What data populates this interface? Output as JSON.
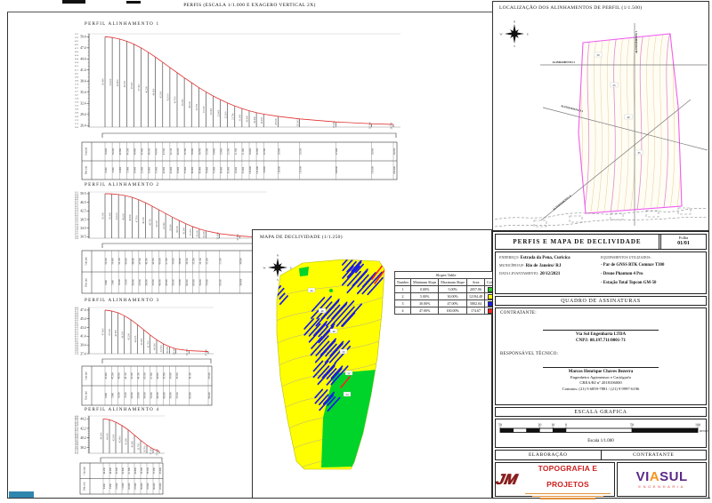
{
  "sheet": {
    "left_title": "PERFIS (ESCALA 1/1.000 E EXAGERO VERTICAL 2X)",
    "location_title": "LOCALIZAÇÃO DOS ALINHAMENTOS DE PERFIL (1/1.500)",
    "declivity_title": "MAPA DE DECLIVIDADE (1/1.250)"
  },
  "compass": {
    "n": "N",
    "e": "E",
    "s": "S",
    "w": "W"
  },
  "alignments": [
    "ALINHAMENTO 1",
    "ALINHAMENTO 2",
    "ALINHAMENTO 3",
    "ALINHAMENTO 4"
  ],
  "profile_table": {
    "row1": "Cota (m)",
    "row2": "Dist. (m)"
  },
  "chart_data": [
    {
      "type": "line",
      "name": "PERFIL ALINHAMENTO 1",
      "x": [
        0,
        5,
        10,
        15,
        20,
        25,
        30,
        35,
        40,
        45,
        50,
        55,
        60,
        65,
        70,
        75,
        80,
        85,
        90,
        95,
        100,
        105,
        110,
        120,
        135,
        160,
        185,
        200
      ],
      "elevations": [
        50.4,
        50.2,
        49.8,
        49.2,
        48.4,
        47.4,
        46.2,
        44.9,
        43.5,
        42.1,
        40.7,
        39.3,
        38.0,
        36.7,
        35.5,
        34.4,
        33.4,
        32.5,
        31.7,
        31.0,
        30.4,
        29.9,
        29.5,
        28.9,
        28.2,
        27.4,
        26.9,
        26.7
      ],
      "yticks": [
        50.4,
        47.4,
        44.4,
        41.4,
        38.4,
        35.4,
        32.4,
        29.4,
        26.4
      ],
      "ylim": [
        26.0,
        51.2
      ],
      "xlabel": "",
      "ylabel": ""
    },
    {
      "type": "line",
      "name": "PERFIL ALINHAMENTO 2",
      "x": [
        0,
        5,
        10,
        15,
        20,
        25,
        30,
        35,
        40,
        45,
        50,
        55,
        60,
        65,
        70,
        75,
        85,
        100,
        115
      ],
      "elevations": [
        50.5,
        50.4,
        50.1,
        49.6,
        48.8,
        47.7,
        46.3,
        44.7,
        43.0,
        41.3,
        39.6,
        38.0,
        36.5,
        35.2,
        34.1,
        33.2,
        31.9,
        30.8,
        30.2
      ],
      "yticks": [
        50.5,
        46.5,
        42.5,
        38.5,
        34.5,
        30.5
      ],
      "ylim": [
        29.8,
        51.3
      ],
      "xlabel": "",
      "ylabel": ""
    },
    {
      "type": "line",
      "name": "PERFIL ALINHAMENTO 3",
      "x": [
        0,
        5,
        10,
        15,
        20,
        25,
        30,
        35,
        40,
        45,
        50,
        55,
        65,
        80
      ],
      "elevations": [
        47.4,
        47.2,
        46.8,
        46.1,
        45.2,
        44.1,
        42.9,
        41.7,
        40.6,
        39.7,
        39.0,
        38.5,
        38.1,
        37.9
      ],
      "yticks": [
        47.4,
        45.4,
        43.4,
        41.4,
        39.4,
        37.4
      ],
      "ylim": [
        37.4,
        48.0
      ],
      "xlabel": "",
      "ylabel": ""
    },
    {
      "type": "line",
      "name": "PERFIL ALINHAMENTO 4",
      "x": [
        0,
        5,
        10,
        15,
        20,
        25,
        30,
        35,
        40,
        45
      ],
      "elevations": [
        44.2,
        44.0,
        43.5,
        42.8,
        41.9,
        40.8,
        39.7,
        38.7,
        37.9,
        37.4
      ],
      "yticks": [
        44.2,
        42.2,
        40.2,
        38.2
      ],
      "ylim": [
        37.0,
        44.8
      ],
      "xlabel": "",
      "ylabel": ""
    }
  ],
  "slopes_table": {
    "title": "Slopes Table",
    "headers": [
      "Number",
      "Minimum Slope",
      "Maximum Slope",
      "Area",
      "Color"
    ],
    "rows": [
      {
        "number": "1",
        "min": "0.00%",
        "max": "5.00%",
        "area": "2057.06",
        "color": "#22cc22"
      },
      {
        "number": "2",
        "min": "5.00%",
        "max": "30.00%",
        "area": "12194.48",
        "color": "#ffff00"
      },
      {
        "number": "3",
        "min": "30.00%",
        "max": "47.00%",
        "area": "5802.04",
        "color": "#1818e8"
      },
      {
        "number": "4",
        "min": "47.00%",
        "max": "100.00%",
        "area": "174.67",
        "color": "#ff2020"
      }
    ]
  },
  "declivity": {
    "contour_labels": [
      "44",
      "46",
      "48",
      "50",
      "52",
      "54"
    ]
  },
  "location": {
    "contour_labels": [
      "50",
      "45",
      "40",
      "35"
    ]
  },
  "title_block": {
    "header_title": "PERFIS E MAPA DE DECLIVIDADE",
    "folha_label": "Folha",
    "folha_value": "01/01",
    "fields": [
      {
        "label": "ENDEREÇO:",
        "value": "Estrada da Pena, Curicica"
      },
      {
        "label": "MUNICÍPIO/UF:",
        "value": "Rio de Janeiro/ RJ"
      },
      {
        "label": "DATA LEVANTAMENTO:",
        "value": "20/12/2021"
      }
    ],
    "equip_label": "EQUIPAMENTOS UTILIZADOS:",
    "equip": [
      "- Par de GNSS RTK Comnav T300",
      "- Drone Phantom 4 Pro",
      "- Estação Total Topcon GM-50"
    ],
    "quadro": "QUADRO DE ASSINATURAS",
    "contratante_label": "CONTRATANTE:",
    "contratante_name": "Via Sol Engenharia LTDA",
    "contratante_cnpj": "CNPJ: 08.197.711/0001-71",
    "resp_label": "RESPONSÁVEL TÉCNICO:",
    "resp_name": "Marcos Henrique Chaves Bezerra",
    "resp_title": "Engenheiro Agrimensor e Cartógrafo",
    "resp_crea": "CREA/RJ nº 2018106000",
    "resp_contact": "Contatos: (21) 9 6859-7881 / (21) 9 9997-6196",
    "escala_title": "ESCALA GRAFICA",
    "escala_caption": "Escala 1/1.000",
    "metros": "METROS",
    "scale_ticks": [
      {
        "label": "50",
        "pos": 0
      },
      {
        "label": "20",
        "pos": 0.2
      },
      {
        "label": "10",
        "pos": 0.2667
      },
      {
        "label": "0",
        "pos": 0.3333
      },
      {
        "label": "50",
        "pos": 0.6667
      },
      {
        "label": "100",
        "pos": 1
      }
    ],
    "elaboracao": "ELABORAÇÃO",
    "contratante2": "CONTRATANTE"
  },
  "logos": {
    "jm_mark": "JM",
    "jm_name": "TOPOGRAFIA E PROJETOS",
    "viasul_vi": "VI",
    "viasul_a": "A",
    "viasul_sul": "SUL",
    "viasul_sub": "ENGENHARIA"
  }
}
